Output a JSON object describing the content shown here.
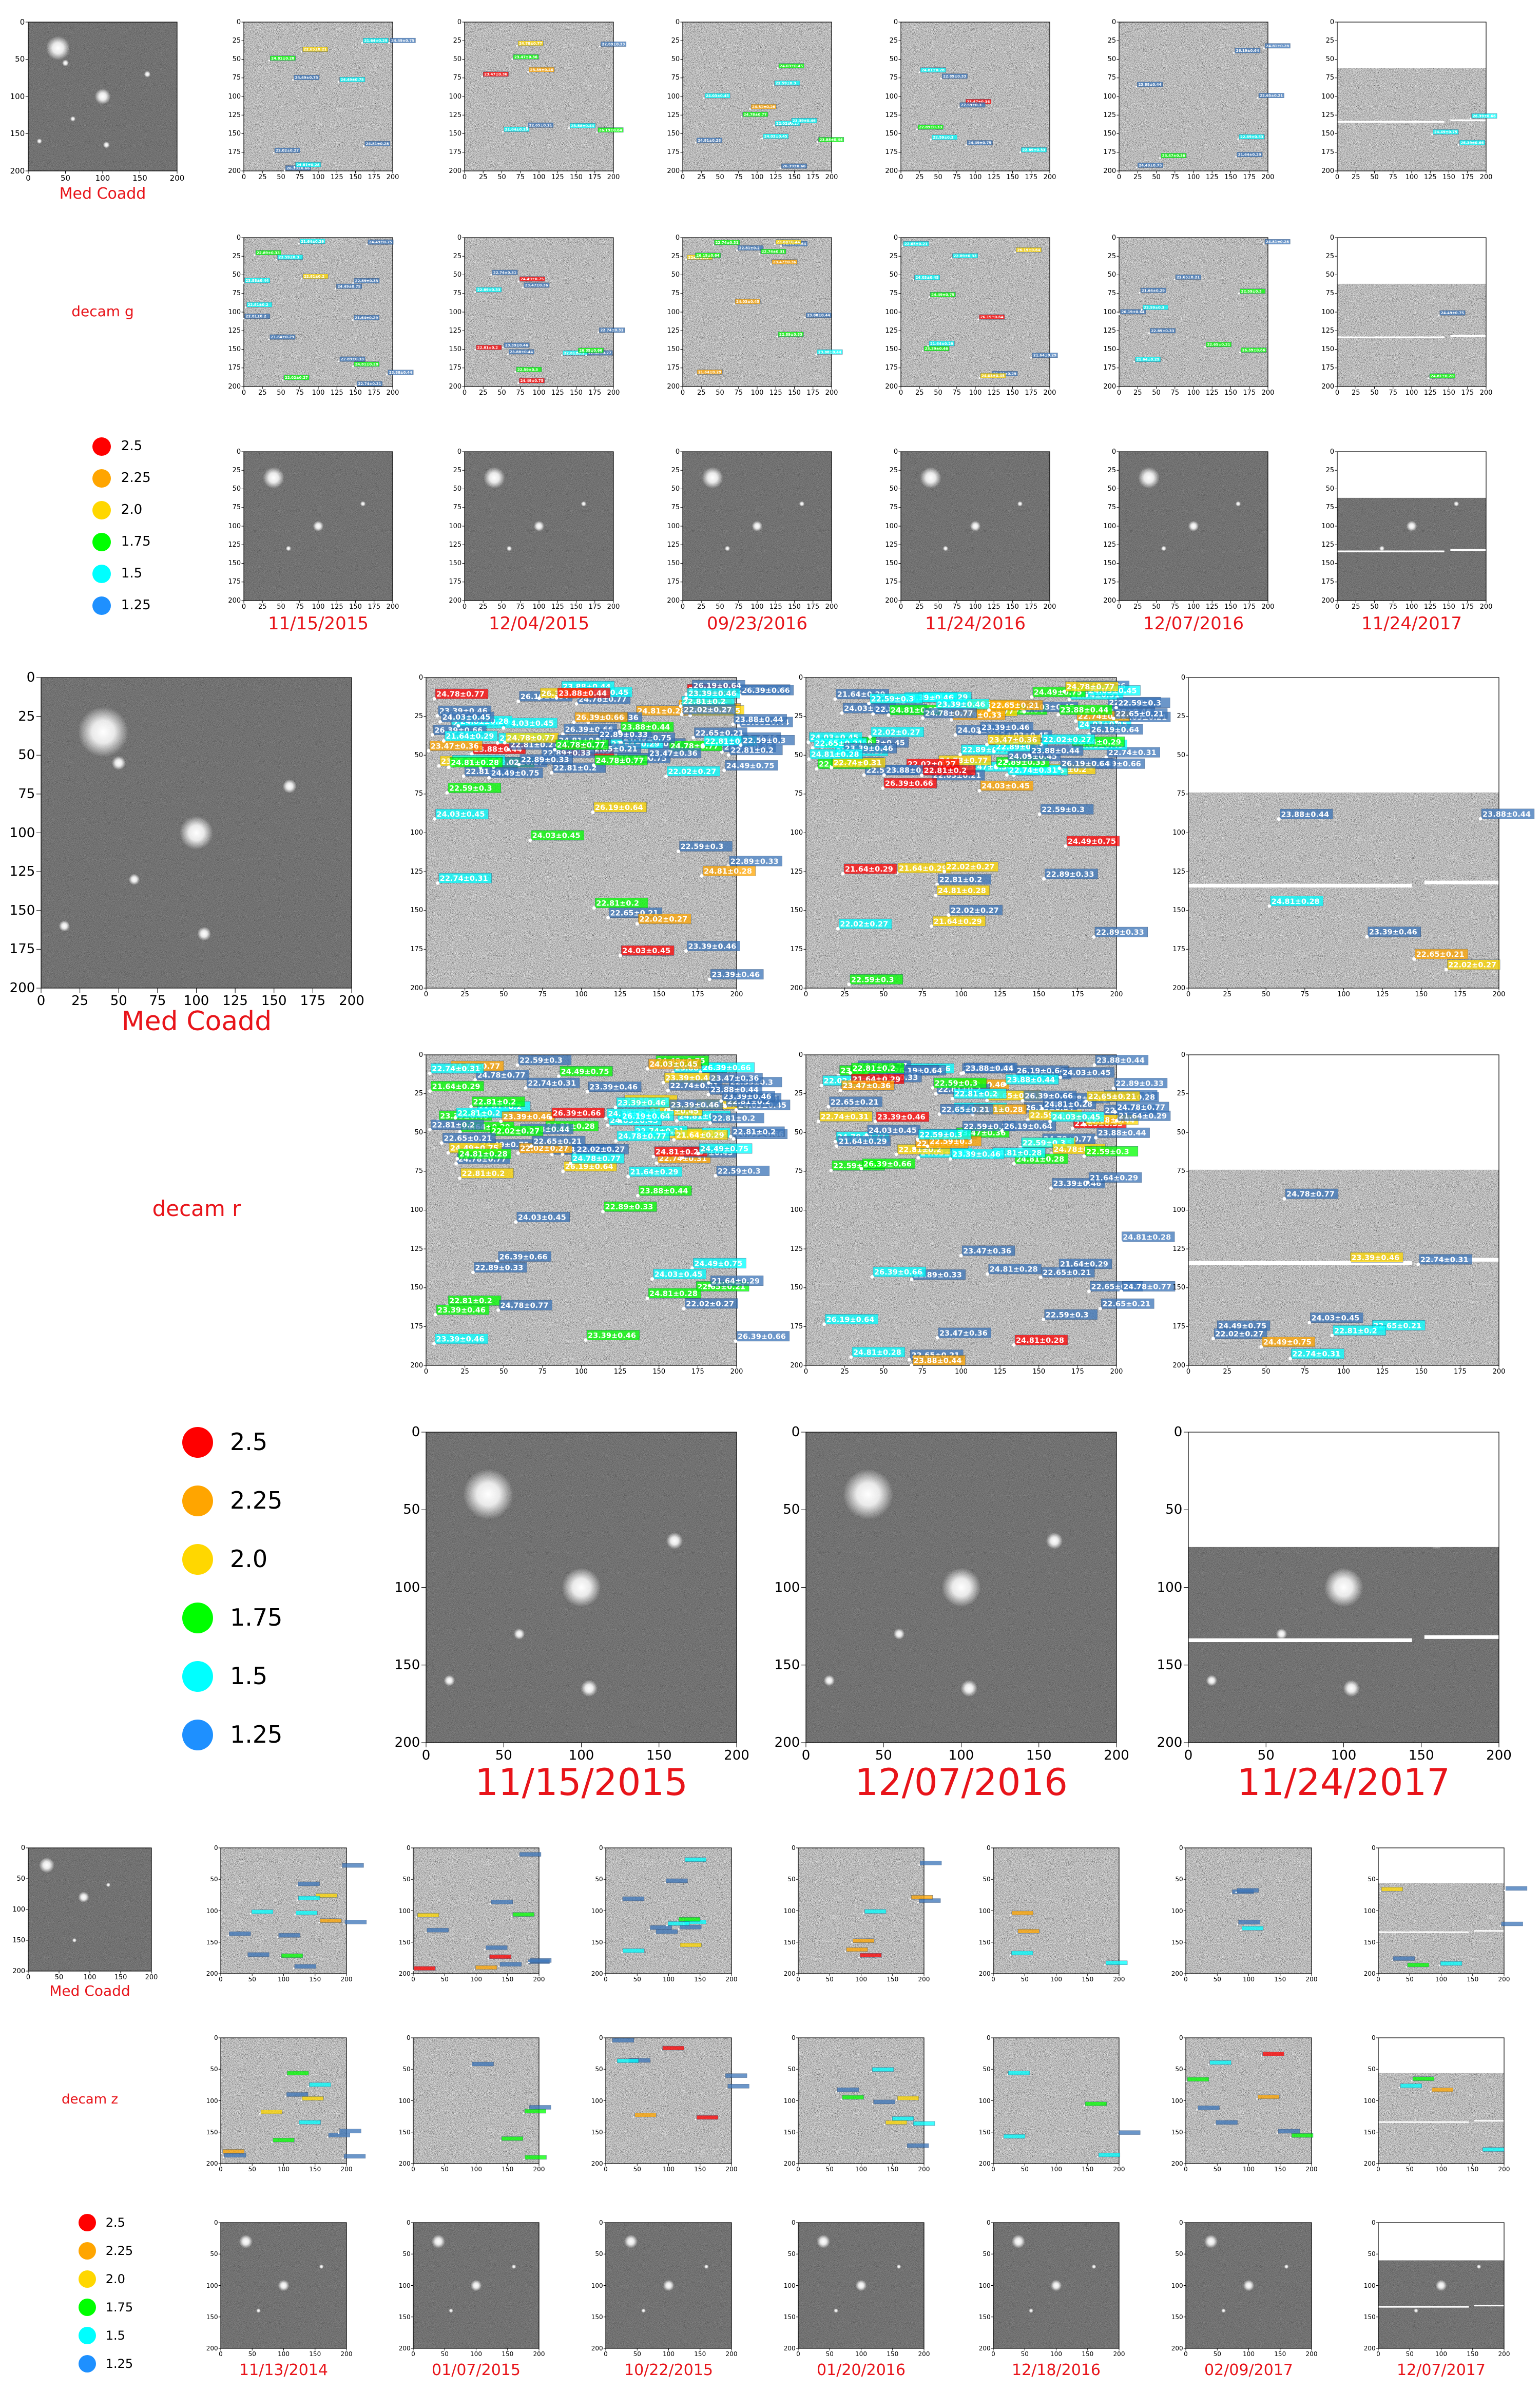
{
  "colors": {
    "label_red": "#e8141a",
    "legend": [
      "#ff0000",
      "#ffa500",
      "#ffd700",
      "#00ff00",
      "#00ffff",
      "#1e90ff"
    ]
  },
  "ticks": [
    "0",
    "25",
    "50",
    "75",
    "100",
    "125",
    "150",
    "175",
    "200"
  ],
  "ticks_coarse": [
    "0",
    "50",
    "100",
    "150",
    "200"
  ],
  "legend": [
    "2.5",
    "2.25",
    "2.0",
    "1.75",
    "1.5",
    "1.25"
  ],
  "panel1": {
    "coadd_label": "Med Coadd",
    "band_label": "decam g",
    "dates": [
      "11/15/2015",
      "12/04/2015",
      "09/23/2016",
      "11/24/2016",
      "12/07/2016",
      "11/24/2017"
    ]
  },
  "panel2": {
    "coadd_label": "Med Coadd",
    "band_label": "decam r",
    "dates": [
      "11/15/2015",
      "12/07/2016",
      "11/24/2017"
    ]
  },
  "panel3": {
    "coadd_label": "Med Coadd",
    "band_label": "decam z",
    "dates": [
      "11/13/2014",
      "01/07/2015",
      "10/22/2015",
      "01/20/2016",
      "12/18/2016",
      "02/09/2017",
      "12/07/2017"
    ]
  },
  "badge_samples": [
    "24.03±0.45",
    "24.78±0.77",
    "26.39±0.66",
    "23.88±0.44",
    "22.74±0.31",
    "22.65±0.21",
    "24.49±0.75",
    "22.89±0.33",
    "22.02±0.27",
    "23.47±0.36",
    "22.81±0.2",
    "21.64±0.29",
    "24.81±0.28",
    "26.19±0.64",
    "23.39±0.46",
    "22.59±0.3"
  ]
}
